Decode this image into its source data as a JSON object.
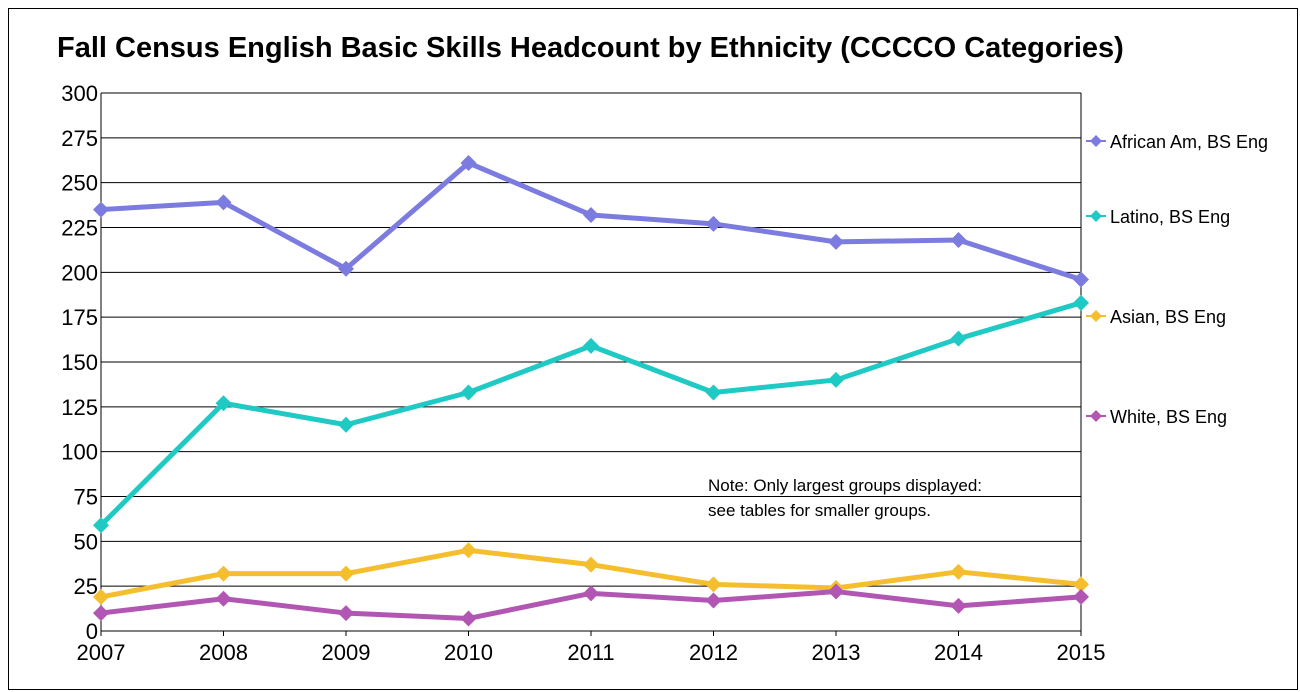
{
  "chart_data": {
    "type": "line",
    "title": "Fall Census English Basic Skills Headcount by Ethnicity (CCCCO Categories)",
    "xlabel": "",
    "ylabel": "",
    "x": [
      "2007",
      "2008",
      "2009",
      "2010",
      "2011",
      "2012",
      "2013",
      "2014",
      "2015"
    ],
    "ylim": [
      0,
      300
    ],
    "yticks": [
      0,
      25,
      50,
      75,
      100,
      125,
      150,
      175,
      200,
      225,
      250,
      275,
      300
    ],
    "grid": true,
    "legend_position": "right",
    "series": [
      {
        "name": "African Am, BS Eng",
        "color": "#7B7BE0",
        "values": [
          235,
          239,
          202,
          261,
          232,
          227,
          217,
          218,
          196
        ]
      },
      {
        "name": "Latino, BS Eng",
        "color": "#1FC9C4",
        "values": [
          59,
          127,
          115,
          133,
          159,
          133,
          140,
          163,
          183
        ]
      },
      {
        "name": "Asian, BS Eng",
        "color": "#F5BE2E",
        "values": [
          19,
          32,
          32,
          45,
          37,
          26,
          24,
          33,
          26
        ]
      },
      {
        "name": "White, BS Eng",
        "color": "#B256B3",
        "values": [
          10,
          18,
          10,
          7,
          21,
          17,
          22,
          14,
          19
        ]
      }
    ],
    "annotations": [
      "Note: Only largest groups displayed:",
      "see tables for smaller groups."
    ]
  }
}
